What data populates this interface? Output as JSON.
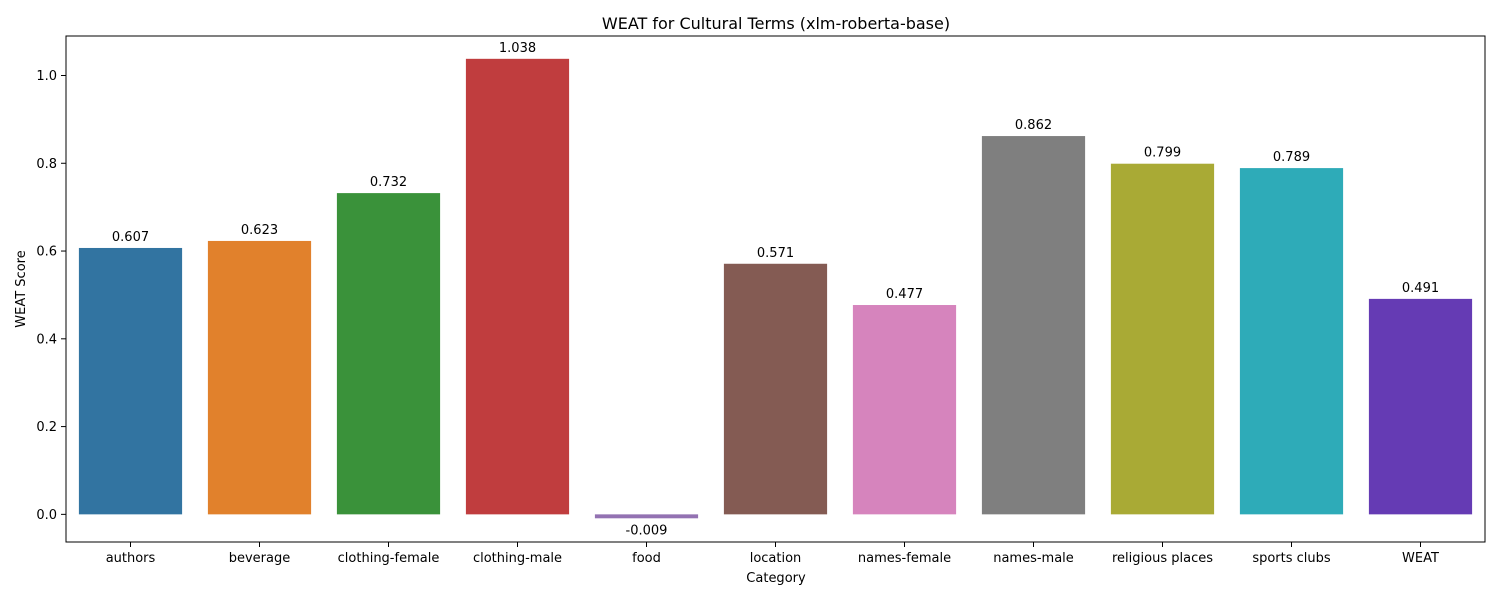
{
  "chart_data": {
    "type": "bar",
    "title": "WEAT for Cultural Terms (xlm-roberta-base)",
    "xlabel": "Category",
    "ylabel": "WEAT Score",
    "categories": [
      "authors",
      "beverage",
      "clothing-female",
      "clothing-male",
      "food",
      "location",
      "names-female",
      "names-male",
      "religious places",
      "sports clubs",
      "WEAT"
    ],
    "values": [
      0.607,
      0.623,
      0.732,
      1.038,
      -0.009,
      0.571,
      0.477,
      0.862,
      0.799,
      0.789,
      0.491
    ],
    "value_labels": [
      "0.607",
      "0.623",
      "0.732",
      "1.038",
      "-0.009",
      "0.571",
      "0.477",
      "0.862",
      "0.799",
      "0.789",
      "0.491"
    ],
    "colors": [
      "#3274a1",
      "#e1812c",
      "#3a923a",
      "#c03d3e",
      "#9372b2",
      "#845b53",
      "#d684bd",
      "#7f7f7f",
      "#a9aa35",
      "#2eabb8",
      "#653bb4"
    ],
    "ylim": [
      -0.063,
      1.09
    ],
    "yticks": [
      0.0,
      0.2,
      0.4,
      0.6,
      0.8,
      1.0
    ],
    "ytick_labels": [
      "0.0",
      "0.2",
      "0.4",
      "0.6",
      "0.8",
      "1.0"
    ],
    "grid": false,
    "legend": "none"
  }
}
